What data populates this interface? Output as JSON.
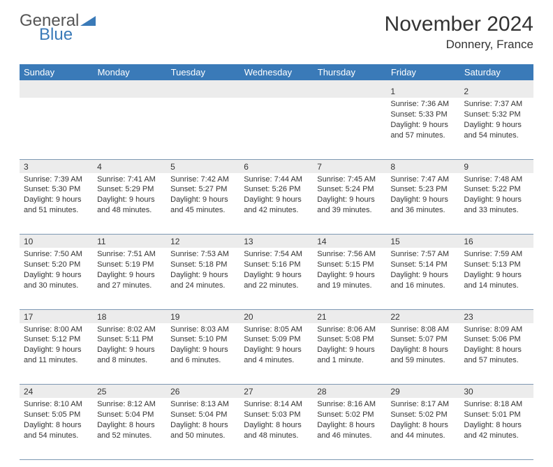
{
  "logo": {
    "word1": "General",
    "word2": "Blue"
  },
  "title": "November 2024",
  "location": "Donnery, France",
  "colors": {
    "header_bg": "#3a7ab8",
    "header_text": "#ffffff",
    "daynum_bg": "#ececec",
    "border": "#7d98b3",
    "text": "#333333",
    "logo_gray": "#555555",
    "logo_blue": "#3a7ab8"
  },
  "weekdays": [
    "Sunday",
    "Monday",
    "Tuesday",
    "Wednesday",
    "Thursday",
    "Friday",
    "Saturday"
  ],
  "weeks": [
    {
      "nums": [
        "",
        "",
        "",
        "",
        "",
        "1",
        "2"
      ],
      "cells": [
        null,
        null,
        null,
        null,
        null,
        {
          "sunrise": "Sunrise: 7:36 AM",
          "sunset": "Sunset: 5:33 PM",
          "day1": "Daylight: 9 hours",
          "day2": "and 57 minutes."
        },
        {
          "sunrise": "Sunrise: 7:37 AM",
          "sunset": "Sunset: 5:32 PM",
          "day1": "Daylight: 9 hours",
          "day2": "and 54 minutes."
        }
      ]
    },
    {
      "nums": [
        "3",
        "4",
        "5",
        "6",
        "7",
        "8",
        "9"
      ],
      "cells": [
        {
          "sunrise": "Sunrise: 7:39 AM",
          "sunset": "Sunset: 5:30 PM",
          "day1": "Daylight: 9 hours",
          "day2": "and 51 minutes."
        },
        {
          "sunrise": "Sunrise: 7:41 AM",
          "sunset": "Sunset: 5:29 PM",
          "day1": "Daylight: 9 hours",
          "day2": "and 48 minutes."
        },
        {
          "sunrise": "Sunrise: 7:42 AM",
          "sunset": "Sunset: 5:27 PM",
          "day1": "Daylight: 9 hours",
          "day2": "and 45 minutes."
        },
        {
          "sunrise": "Sunrise: 7:44 AM",
          "sunset": "Sunset: 5:26 PM",
          "day1": "Daylight: 9 hours",
          "day2": "and 42 minutes."
        },
        {
          "sunrise": "Sunrise: 7:45 AM",
          "sunset": "Sunset: 5:24 PM",
          "day1": "Daylight: 9 hours",
          "day2": "and 39 minutes."
        },
        {
          "sunrise": "Sunrise: 7:47 AM",
          "sunset": "Sunset: 5:23 PM",
          "day1": "Daylight: 9 hours",
          "day2": "and 36 minutes."
        },
        {
          "sunrise": "Sunrise: 7:48 AM",
          "sunset": "Sunset: 5:22 PM",
          "day1": "Daylight: 9 hours",
          "day2": "and 33 minutes."
        }
      ]
    },
    {
      "nums": [
        "10",
        "11",
        "12",
        "13",
        "14",
        "15",
        "16"
      ],
      "cells": [
        {
          "sunrise": "Sunrise: 7:50 AM",
          "sunset": "Sunset: 5:20 PM",
          "day1": "Daylight: 9 hours",
          "day2": "and 30 minutes."
        },
        {
          "sunrise": "Sunrise: 7:51 AM",
          "sunset": "Sunset: 5:19 PM",
          "day1": "Daylight: 9 hours",
          "day2": "and 27 minutes."
        },
        {
          "sunrise": "Sunrise: 7:53 AM",
          "sunset": "Sunset: 5:18 PM",
          "day1": "Daylight: 9 hours",
          "day2": "and 24 minutes."
        },
        {
          "sunrise": "Sunrise: 7:54 AM",
          "sunset": "Sunset: 5:16 PM",
          "day1": "Daylight: 9 hours",
          "day2": "and 22 minutes."
        },
        {
          "sunrise": "Sunrise: 7:56 AM",
          "sunset": "Sunset: 5:15 PM",
          "day1": "Daylight: 9 hours",
          "day2": "and 19 minutes."
        },
        {
          "sunrise": "Sunrise: 7:57 AM",
          "sunset": "Sunset: 5:14 PM",
          "day1": "Daylight: 9 hours",
          "day2": "and 16 minutes."
        },
        {
          "sunrise": "Sunrise: 7:59 AM",
          "sunset": "Sunset: 5:13 PM",
          "day1": "Daylight: 9 hours",
          "day2": "and 14 minutes."
        }
      ]
    },
    {
      "nums": [
        "17",
        "18",
        "19",
        "20",
        "21",
        "22",
        "23"
      ],
      "cells": [
        {
          "sunrise": "Sunrise: 8:00 AM",
          "sunset": "Sunset: 5:12 PM",
          "day1": "Daylight: 9 hours",
          "day2": "and 11 minutes."
        },
        {
          "sunrise": "Sunrise: 8:02 AM",
          "sunset": "Sunset: 5:11 PM",
          "day1": "Daylight: 9 hours",
          "day2": "and 8 minutes."
        },
        {
          "sunrise": "Sunrise: 8:03 AM",
          "sunset": "Sunset: 5:10 PM",
          "day1": "Daylight: 9 hours",
          "day2": "and 6 minutes."
        },
        {
          "sunrise": "Sunrise: 8:05 AM",
          "sunset": "Sunset: 5:09 PM",
          "day1": "Daylight: 9 hours",
          "day2": "and 4 minutes."
        },
        {
          "sunrise": "Sunrise: 8:06 AM",
          "sunset": "Sunset: 5:08 PM",
          "day1": "Daylight: 9 hours",
          "day2": "and 1 minute."
        },
        {
          "sunrise": "Sunrise: 8:08 AM",
          "sunset": "Sunset: 5:07 PM",
          "day1": "Daylight: 8 hours",
          "day2": "and 59 minutes."
        },
        {
          "sunrise": "Sunrise: 8:09 AM",
          "sunset": "Sunset: 5:06 PM",
          "day1": "Daylight: 8 hours",
          "day2": "and 57 minutes."
        }
      ]
    },
    {
      "nums": [
        "24",
        "25",
        "26",
        "27",
        "28",
        "29",
        "30"
      ],
      "cells": [
        {
          "sunrise": "Sunrise: 8:10 AM",
          "sunset": "Sunset: 5:05 PM",
          "day1": "Daylight: 8 hours",
          "day2": "and 54 minutes."
        },
        {
          "sunrise": "Sunrise: 8:12 AM",
          "sunset": "Sunset: 5:04 PM",
          "day1": "Daylight: 8 hours",
          "day2": "and 52 minutes."
        },
        {
          "sunrise": "Sunrise: 8:13 AM",
          "sunset": "Sunset: 5:04 PM",
          "day1": "Daylight: 8 hours",
          "day2": "and 50 minutes."
        },
        {
          "sunrise": "Sunrise: 8:14 AM",
          "sunset": "Sunset: 5:03 PM",
          "day1": "Daylight: 8 hours",
          "day2": "and 48 minutes."
        },
        {
          "sunrise": "Sunrise: 8:16 AM",
          "sunset": "Sunset: 5:02 PM",
          "day1": "Daylight: 8 hours",
          "day2": "and 46 minutes."
        },
        {
          "sunrise": "Sunrise: 8:17 AM",
          "sunset": "Sunset: 5:02 PM",
          "day1": "Daylight: 8 hours",
          "day2": "and 44 minutes."
        },
        {
          "sunrise": "Sunrise: 8:18 AM",
          "sunset": "Sunset: 5:01 PM",
          "day1": "Daylight: 8 hours",
          "day2": "and 42 minutes."
        }
      ]
    }
  ]
}
